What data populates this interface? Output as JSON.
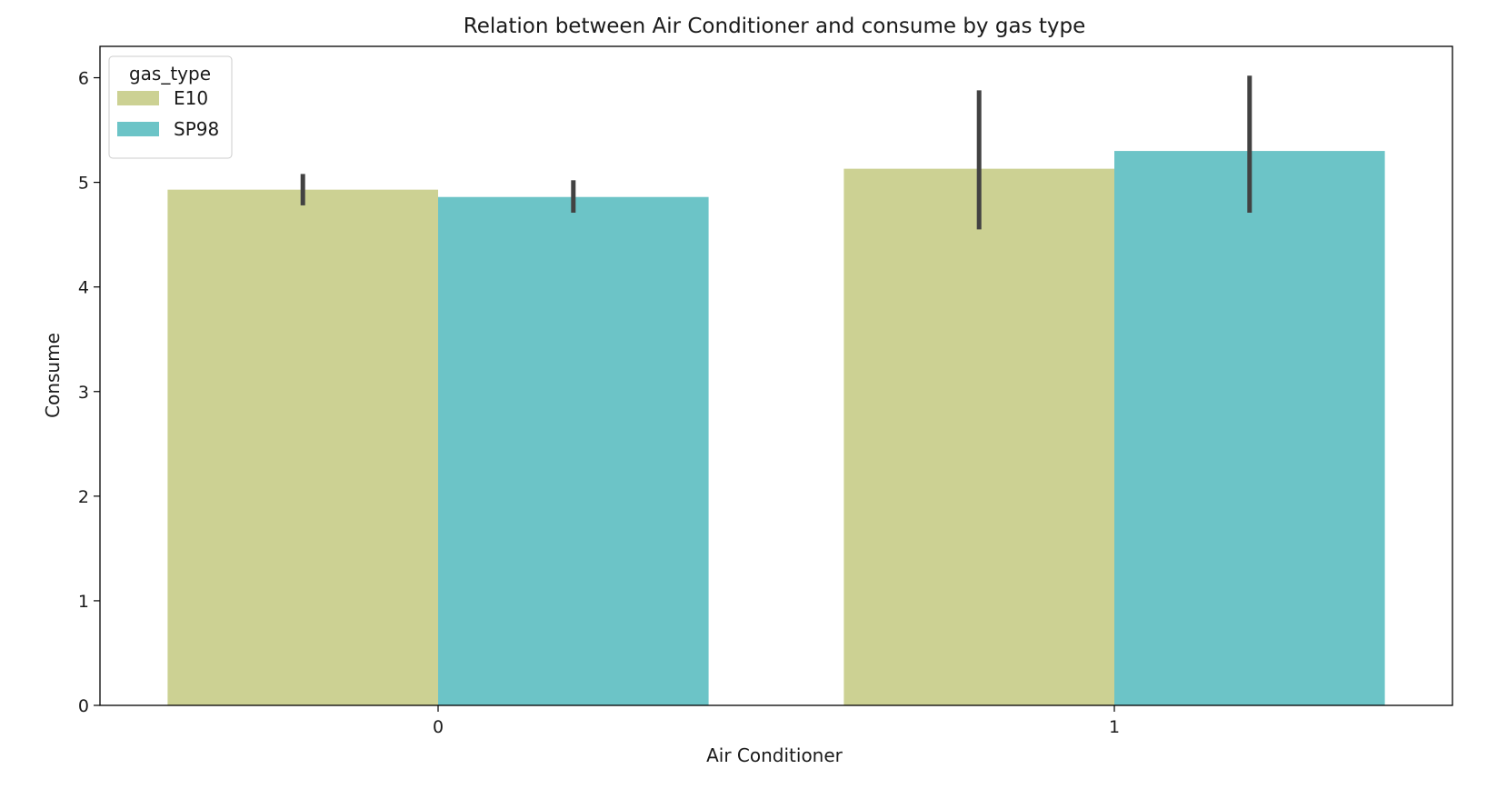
{
  "chart_data": {
    "type": "bar",
    "title": "Relation between Air Conditioner and consume by gas type",
    "xlabel": "Air Conditioner",
    "ylabel": "Consume",
    "categories": [
      "0",
      "1"
    ],
    "ylim": [
      0,
      6.3
    ],
    "yticks": [
      0,
      1,
      2,
      3,
      4,
      5,
      6
    ],
    "legend": {
      "title": "gas_type",
      "placement": "top-left"
    },
    "series": [
      {
        "name": "E10",
        "color": "#ccd193",
        "values": [
          4.93,
          5.13
        ],
        "ci": [
          [
            4.78,
            5.08
          ],
          [
            4.55,
            5.88
          ]
        ]
      },
      {
        "name": "SP98",
        "color": "#6cc4c7",
        "values": [
          4.86,
          5.3
        ],
        "ci": [
          [
            4.71,
            5.02
          ],
          [
            4.71,
            6.02
          ]
        ]
      }
    ]
  }
}
